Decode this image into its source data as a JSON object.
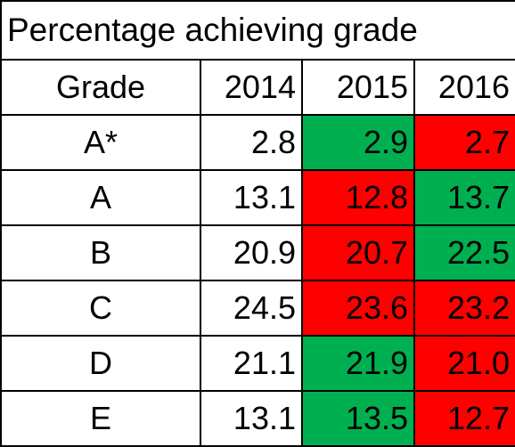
{
  "title": "Percentage achieving grade",
  "columns": {
    "grade": "Grade",
    "years": [
      "2014",
      "2015",
      "2016"
    ]
  },
  "colors": {
    "increase": "#00b050",
    "decrease": "#ff0000",
    "neutral": "#ffffff",
    "border": "#000000"
  },
  "rows": [
    {
      "grade": "A*",
      "values": [
        "2.8",
        "2.9",
        "2.7"
      ],
      "trend": [
        "neutral",
        "increase",
        "decrease"
      ]
    },
    {
      "grade": "A",
      "values": [
        "13.1",
        "12.8",
        "13.7"
      ],
      "trend": [
        "neutral",
        "decrease",
        "increase"
      ]
    },
    {
      "grade": "B",
      "values": [
        "20.9",
        "20.7",
        "22.5"
      ],
      "trend": [
        "neutral",
        "decrease",
        "increase"
      ]
    },
    {
      "grade": "C",
      "values": [
        "24.5",
        "23.6",
        "23.2"
      ],
      "trend": [
        "neutral",
        "decrease",
        "decrease"
      ]
    },
    {
      "grade": "D",
      "values": [
        "21.1",
        "21.9",
        "21.0"
      ],
      "trend": [
        "neutral",
        "increase",
        "decrease"
      ]
    },
    {
      "grade": "E",
      "values": [
        "13.1",
        "13.5",
        "12.7"
      ],
      "trend": [
        "neutral",
        "increase",
        "decrease"
      ]
    }
  ]
}
